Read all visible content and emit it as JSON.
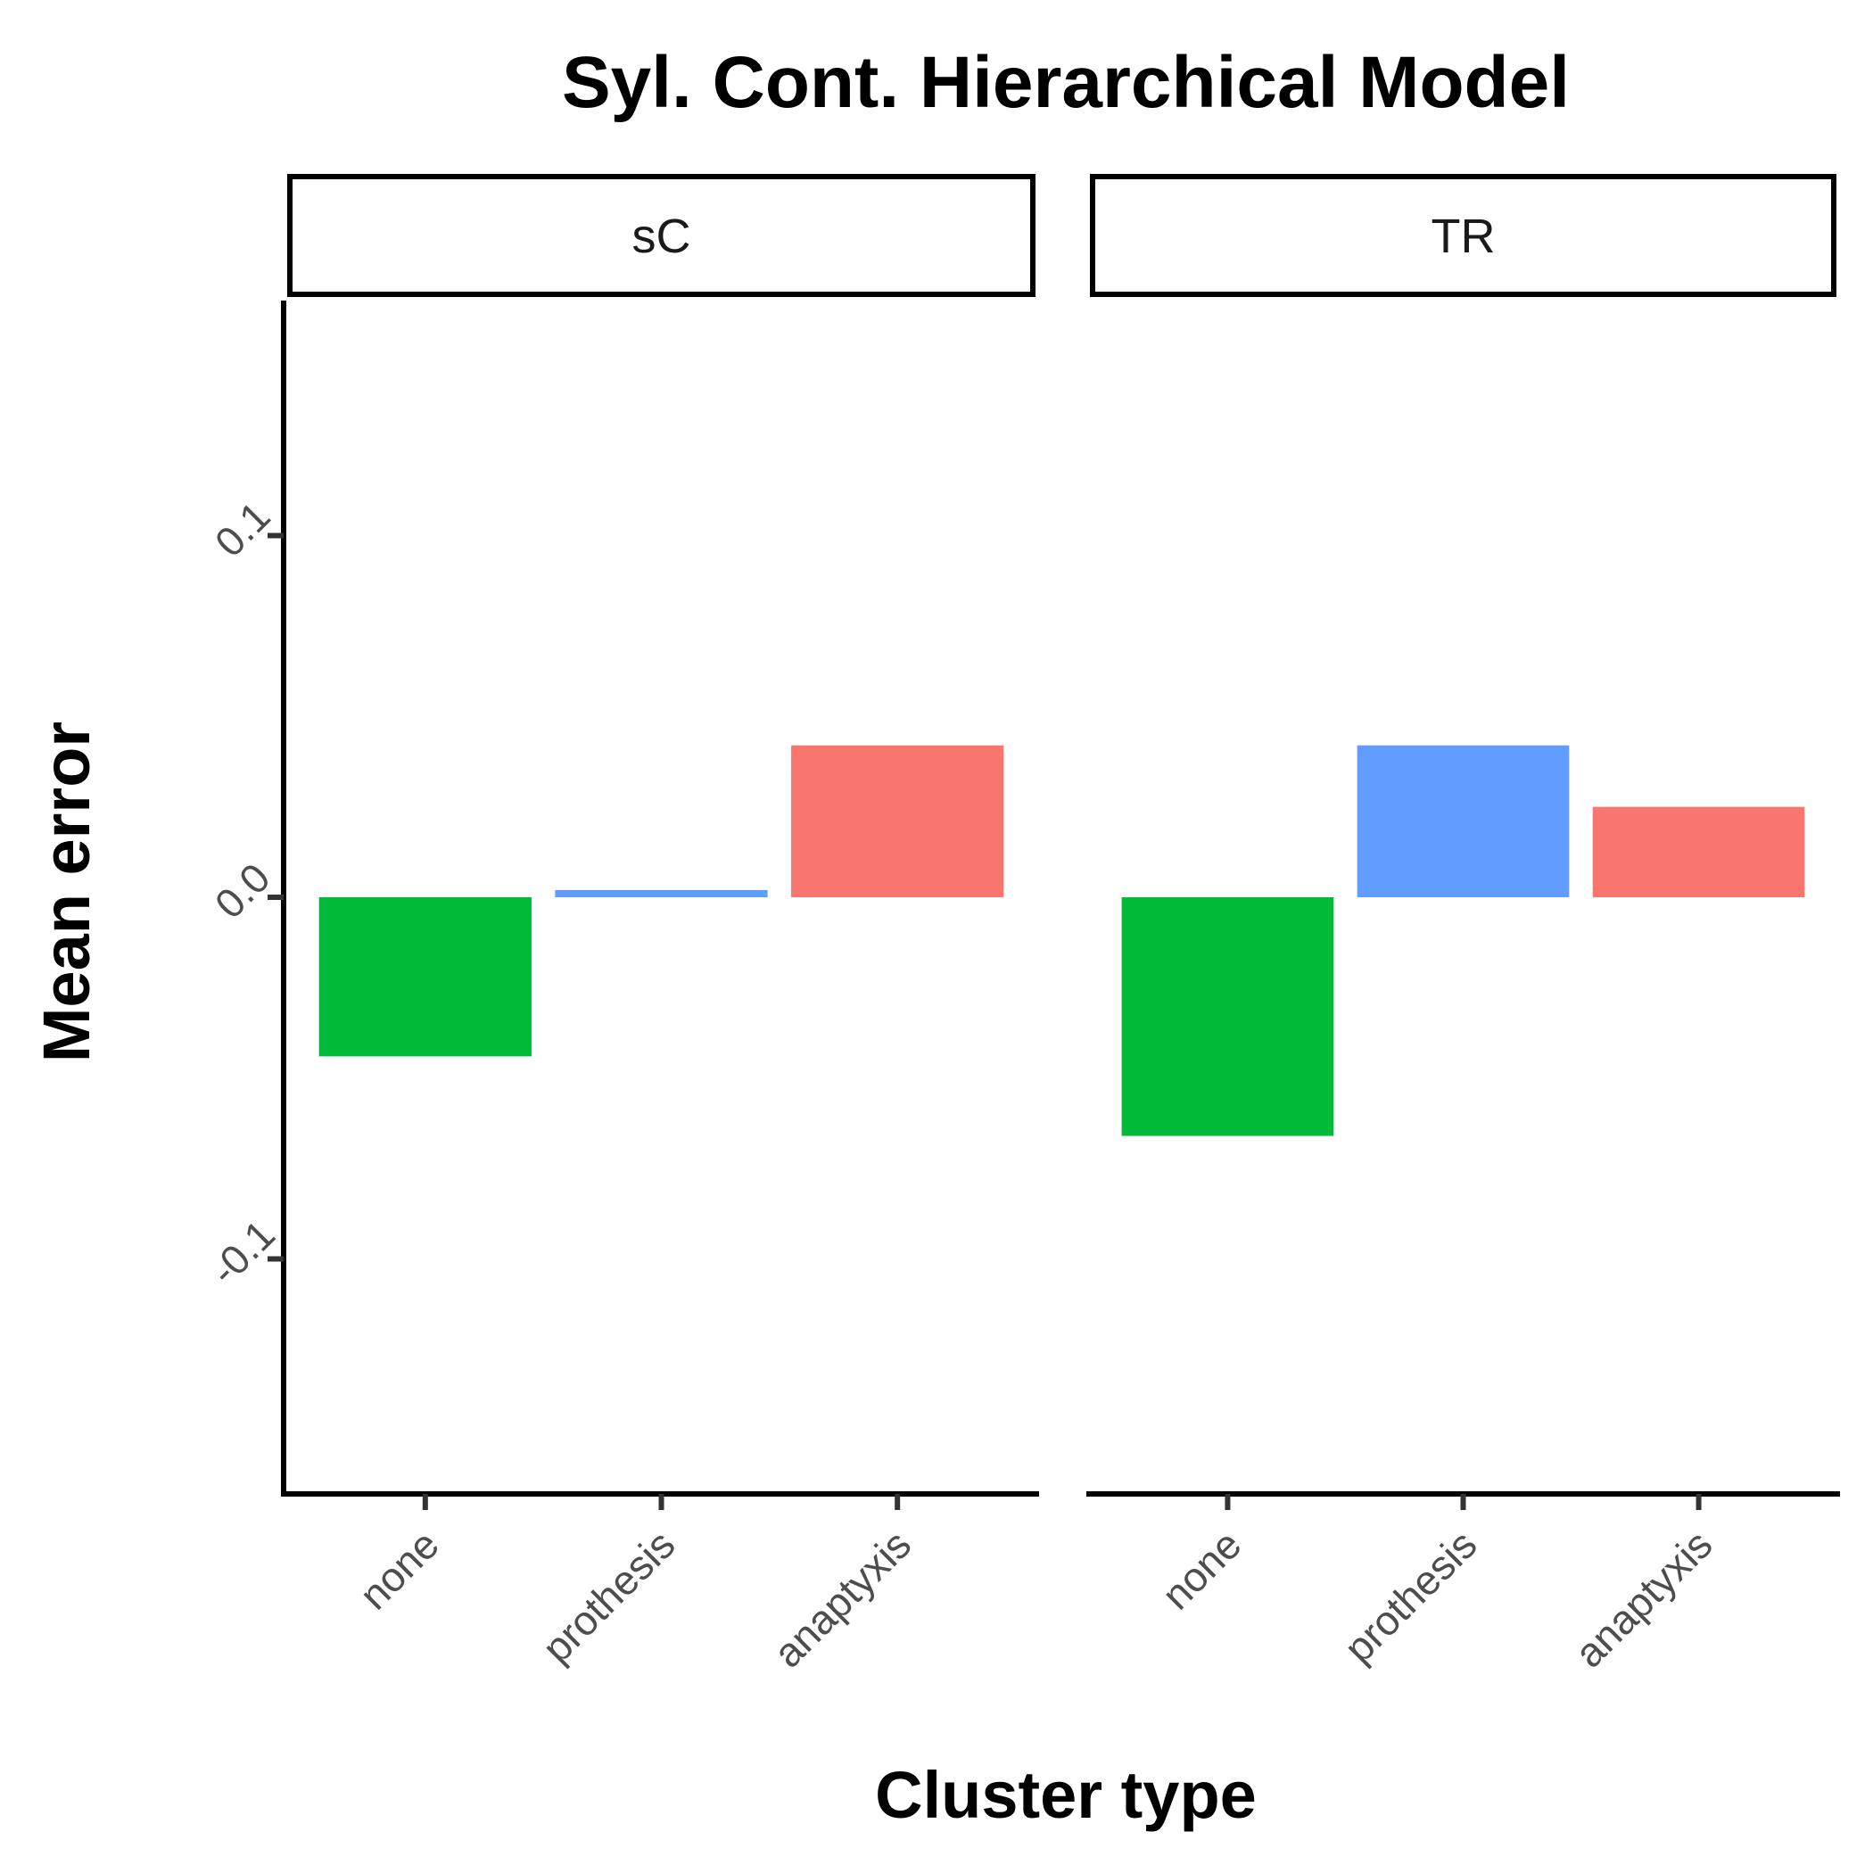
{
  "chart_data": {
    "type": "bar",
    "title": "Syl. Cont. Hierarchical Model",
    "xlabel": "Cluster type",
    "ylabel": "Mean error",
    "ylim": [
      -0.165,
      0.165
    ],
    "yticks": [
      -0.1,
      0.0,
      0.1
    ],
    "ytick_labels": [
      "-0.1",
      "0.0",
      "0.1"
    ],
    "categories": [
      "none",
      "prothesis",
      "anaptyxis"
    ],
    "colors": {
      "none": "#00BA38",
      "prothesis": "#619CFF",
      "anaptyxis": "#F8766D"
    },
    "facets": [
      {
        "label": "sC",
        "values": [
          -0.044,
          0.002,
          0.042
        ]
      },
      {
        "label": "TR",
        "values": [
          -0.066,
          0.042,
          0.025
        ]
      }
    ],
    "grid": false,
    "legend": "none"
  }
}
